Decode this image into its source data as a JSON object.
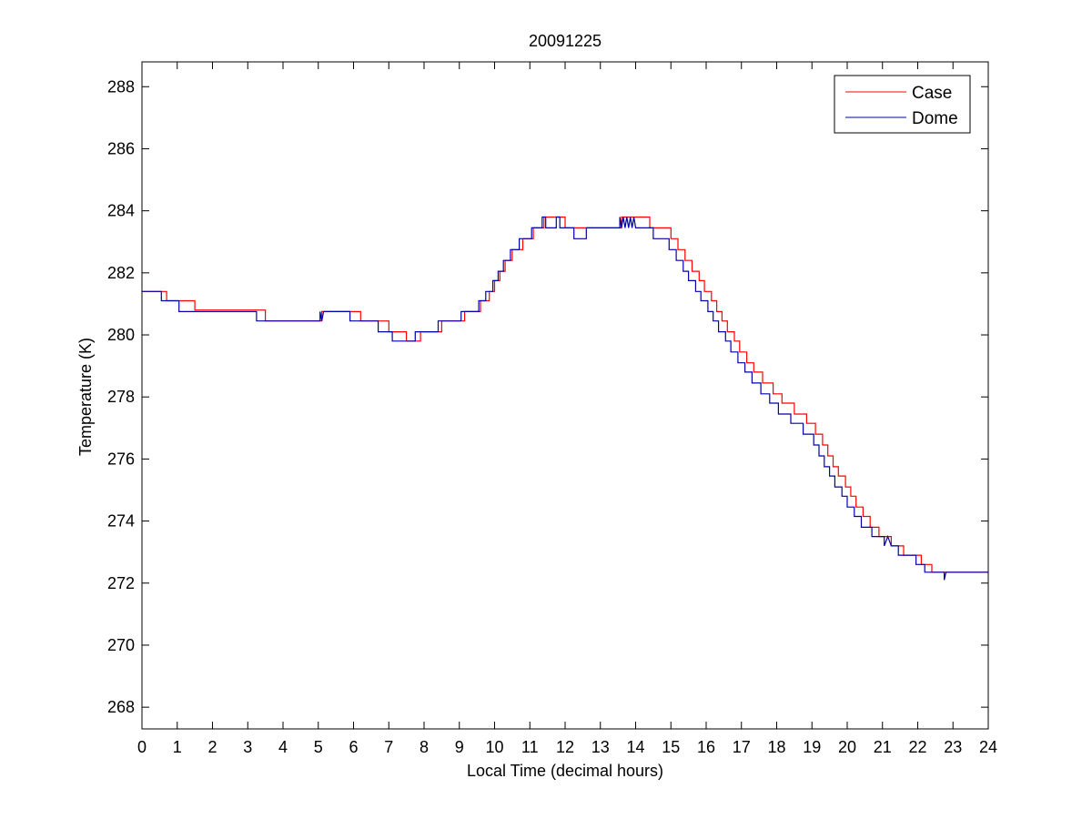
{
  "chart_data": {
    "type": "line",
    "title": "20091225",
    "xlabel": "Local Time (decimal hours)",
    "ylabel": "Temperature (K)",
    "xlim": [
      0,
      24
    ],
    "ylim": [
      267.3,
      288.8
    ],
    "xticks": [
      0,
      1,
      2,
      3,
      4,
      5,
      6,
      7,
      8,
      9,
      10,
      11,
      12,
      13,
      14,
      15,
      16,
      17,
      18,
      19,
      20,
      21,
      22,
      23,
      24
    ],
    "yticks": [
      268,
      270,
      272,
      274,
      276,
      278,
      280,
      282,
      284,
      286,
      288
    ],
    "grid": false,
    "legend_position": "top-right",
    "series": [
      {
        "name": "Case",
        "color": "#ff0000",
        "points": [
          [
            0,
            281.4
          ],
          [
            0.7,
            281.4
          ],
          [
            0.7,
            281.1
          ],
          [
            1.5,
            281.1
          ],
          [
            1.5,
            280.8
          ],
          [
            3.5,
            280.8
          ],
          [
            3.5,
            280.45
          ],
          [
            5.1,
            280.45
          ],
          [
            5.1,
            280.75
          ],
          [
            6.2,
            280.75
          ],
          [
            6.2,
            280.45
          ],
          [
            7.0,
            280.45
          ],
          [
            7.0,
            280.1
          ],
          [
            7.5,
            280.1
          ],
          [
            7.5,
            279.8
          ],
          [
            7.9,
            279.8
          ],
          [
            7.9,
            280.1
          ],
          [
            8.5,
            280.1
          ],
          [
            8.5,
            280.45
          ],
          [
            9.15,
            280.45
          ],
          [
            9.15,
            280.75
          ],
          [
            9.6,
            280.75
          ],
          [
            9.6,
            281.1
          ],
          [
            9.85,
            281.1
          ],
          [
            9.85,
            281.4
          ],
          [
            10.0,
            281.4
          ],
          [
            10.0,
            281.75
          ],
          [
            10.15,
            281.75
          ],
          [
            10.15,
            282.05
          ],
          [
            10.3,
            282.05
          ],
          [
            10.3,
            282.4
          ],
          [
            10.5,
            282.4
          ],
          [
            10.5,
            282.75
          ],
          [
            10.8,
            282.75
          ],
          [
            10.8,
            283.1
          ],
          [
            11.1,
            283.1
          ],
          [
            11.1,
            283.45
          ],
          [
            11.4,
            283.45
          ],
          [
            11.4,
            283.8
          ],
          [
            12.0,
            283.8
          ],
          [
            12.0,
            283.45
          ],
          [
            13.6,
            283.45
          ],
          [
            13.6,
            283.8
          ],
          [
            14.4,
            283.8
          ],
          [
            14.4,
            283.45
          ],
          [
            15.0,
            283.45
          ],
          [
            15.0,
            283.1
          ],
          [
            15.2,
            283.1
          ],
          [
            15.2,
            282.75
          ],
          [
            15.4,
            282.75
          ],
          [
            15.4,
            282.4
          ],
          [
            15.6,
            282.4
          ],
          [
            15.6,
            282.05
          ],
          [
            15.8,
            282.05
          ],
          [
            15.8,
            281.75
          ],
          [
            15.95,
            281.75
          ],
          [
            15.95,
            281.4
          ],
          [
            16.15,
            281.4
          ],
          [
            16.15,
            281.1
          ],
          [
            16.3,
            281.1
          ],
          [
            16.3,
            280.75
          ],
          [
            16.45,
            280.75
          ],
          [
            16.45,
            280.45
          ],
          [
            16.6,
            280.45
          ],
          [
            16.6,
            280.1
          ],
          [
            16.8,
            280.1
          ],
          [
            16.8,
            279.8
          ],
          [
            16.95,
            279.8
          ],
          [
            16.95,
            279.45
          ],
          [
            17.15,
            279.45
          ],
          [
            17.15,
            279.1
          ],
          [
            17.35,
            279.1
          ],
          [
            17.35,
            278.8
          ],
          [
            17.6,
            278.8
          ],
          [
            17.6,
            278.45
          ],
          [
            17.9,
            278.45
          ],
          [
            17.9,
            278.1
          ],
          [
            18.15,
            278.1
          ],
          [
            18.15,
            277.8
          ],
          [
            18.5,
            277.8
          ],
          [
            18.5,
            277.45
          ],
          [
            18.85,
            277.45
          ],
          [
            18.85,
            277.15
          ],
          [
            19.1,
            277.15
          ],
          [
            19.1,
            276.8
          ],
          [
            19.3,
            276.8
          ],
          [
            19.3,
            276.45
          ],
          [
            19.45,
            276.45
          ],
          [
            19.45,
            276.1
          ],
          [
            19.6,
            276.1
          ],
          [
            19.6,
            275.75
          ],
          [
            19.75,
            275.75
          ],
          [
            19.75,
            275.45
          ],
          [
            19.95,
            275.45
          ],
          [
            19.95,
            275.1
          ],
          [
            20.1,
            275.1
          ],
          [
            20.1,
            274.8
          ],
          [
            20.25,
            274.8
          ],
          [
            20.25,
            274.45
          ],
          [
            20.45,
            274.45
          ],
          [
            20.45,
            274.15
          ],
          [
            20.65,
            274.15
          ],
          [
            20.65,
            273.8
          ],
          [
            20.9,
            273.8
          ],
          [
            20.9,
            273.5
          ],
          [
            21.25,
            273.5
          ],
          [
            21.25,
            273.2
          ],
          [
            21.6,
            273.2
          ],
          [
            21.6,
            272.9
          ],
          [
            22.1,
            272.9
          ],
          [
            22.1,
            272.6
          ],
          [
            22.4,
            272.6
          ],
          [
            22.4,
            272.35
          ],
          [
            24,
            272.35
          ]
        ]
      },
      {
        "name": "Dome",
        "color": "#0000aa",
        "points": [
          [
            0,
            281.4
          ],
          [
            0.55,
            281.4
          ],
          [
            0.55,
            281.1
          ],
          [
            1.05,
            281.1
          ],
          [
            1.05,
            280.75
          ],
          [
            3.25,
            280.75
          ],
          [
            3.25,
            280.45
          ],
          [
            5.05,
            280.45
          ],
          [
            5.05,
            280.75
          ],
          [
            5.1,
            280.45
          ],
          [
            5.15,
            280.75
          ],
          [
            5.9,
            280.75
          ],
          [
            5.9,
            280.45
          ],
          [
            6.7,
            280.45
          ],
          [
            6.7,
            280.1
          ],
          [
            7.1,
            280.1
          ],
          [
            7.1,
            279.8
          ],
          [
            7.75,
            279.8
          ],
          [
            7.75,
            280.1
          ],
          [
            8.4,
            280.1
          ],
          [
            8.4,
            280.45
          ],
          [
            9.05,
            280.45
          ],
          [
            9.05,
            280.75
          ],
          [
            9.55,
            280.75
          ],
          [
            9.55,
            281.1
          ],
          [
            9.75,
            281.1
          ],
          [
            9.75,
            281.4
          ],
          [
            9.95,
            281.4
          ],
          [
            9.95,
            281.75
          ],
          [
            10.1,
            281.75
          ],
          [
            10.1,
            282.05
          ],
          [
            10.25,
            282.05
          ],
          [
            10.25,
            282.4
          ],
          [
            10.45,
            282.4
          ],
          [
            10.45,
            282.75
          ],
          [
            10.7,
            282.75
          ],
          [
            10.7,
            283.1
          ],
          [
            11.05,
            283.1
          ],
          [
            11.05,
            283.45
          ],
          [
            11.35,
            283.45
          ],
          [
            11.35,
            283.8
          ],
          [
            11.45,
            283.8
          ],
          [
            11.45,
            283.45
          ],
          [
            11.75,
            283.45
          ],
          [
            11.75,
            283.8
          ],
          [
            11.85,
            283.8
          ],
          [
            11.85,
            283.45
          ],
          [
            12.25,
            283.45
          ],
          [
            12.25,
            283.1
          ],
          [
            12.6,
            283.1
          ],
          [
            12.6,
            283.45
          ],
          [
            13.55,
            283.45
          ],
          [
            13.55,
            283.8
          ],
          [
            13.6,
            283.45
          ],
          [
            13.65,
            283.8
          ],
          [
            13.7,
            283.45
          ],
          [
            13.75,
            283.8
          ],
          [
            13.8,
            283.45
          ],
          [
            13.85,
            283.8
          ],
          [
            13.9,
            283.45
          ],
          [
            13.95,
            283.8
          ],
          [
            14.0,
            283.45
          ],
          [
            14.5,
            283.45
          ],
          [
            14.5,
            283.1
          ],
          [
            14.95,
            283.1
          ],
          [
            14.95,
            282.75
          ],
          [
            15.15,
            282.75
          ],
          [
            15.15,
            282.4
          ],
          [
            15.35,
            282.4
          ],
          [
            15.35,
            282.05
          ],
          [
            15.5,
            282.05
          ],
          [
            15.5,
            281.75
          ],
          [
            15.7,
            281.75
          ],
          [
            15.7,
            281.4
          ],
          [
            15.85,
            281.4
          ],
          [
            15.85,
            281.1
          ],
          [
            16.05,
            281.1
          ],
          [
            16.05,
            280.75
          ],
          [
            16.2,
            280.75
          ],
          [
            16.2,
            280.45
          ],
          [
            16.35,
            280.45
          ],
          [
            16.35,
            280.1
          ],
          [
            16.55,
            280.1
          ],
          [
            16.55,
            279.8
          ],
          [
            16.7,
            279.8
          ],
          [
            16.7,
            279.45
          ],
          [
            16.9,
            279.45
          ],
          [
            16.9,
            279.1
          ],
          [
            17.1,
            279.1
          ],
          [
            17.1,
            278.8
          ],
          [
            17.3,
            278.8
          ],
          [
            17.3,
            278.45
          ],
          [
            17.55,
            278.45
          ],
          [
            17.55,
            278.1
          ],
          [
            17.8,
            278.1
          ],
          [
            17.8,
            277.8
          ],
          [
            18.05,
            277.8
          ],
          [
            18.05,
            277.45
          ],
          [
            18.4,
            277.45
          ],
          [
            18.4,
            277.15
          ],
          [
            18.75,
            277.15
          ],
          [
            18.75,
            276.8
          ],
          [
            19.05,
            276.8
          ],
          [
            19.05,
            276.45
          ],
          [
            19.2,
            276.45
          ],
          [
            19.2,
            276.1
          ],
          [
            19.35,
            276.1
          ],
          [
            19.35,
            275.75
          ],
          [
            19.5,
            275.75
          ],
          [
            19.5,
            275.45
          ],
          [
            19.65,
            275.45
          ],
          [
            19.65,
            275.1
          ],
          [
            19.85,
            275.1
          ],
          [
            19.85,
            274.8
          ],
          [
            20.0,
            274.8
          ],
          [
            20.0,
            274.45
          ],
          [
            20.2,
            274.45
          ],
          [
            20.2,
            274.15
          ],
          [
            20.4,
            274.15
          ],
          [
            20.4,
            273.8
          ],
          [
            20.7,
            273.8
          ],
          [
            20.7,
            273.5
          ],
          [
            21.05,
            273.5
          ],
          [
            21.05,
            273.2
          ],
          [
            21.15,
            273.5
          ],
          [
            21.25,
            273.2
          ],
          [
            21.45,
            273.2
          ],
          [
            21.45,
            272.9
          ],
          [
            21.95,
            272.9
          ],
          [
            21.95,
            272.6
          ],
          [
            22.2,
            272.6
          ],
          [
            22.2,
            272.35
          ],
          [
            22.75,
            272.35
          ],
          [
            22.75,
            272.1
          ],
          [
            22.8,
            272.35
          ],
          [
            24,
            272.35
          ]
        ]
      }
    ]
  }
}
